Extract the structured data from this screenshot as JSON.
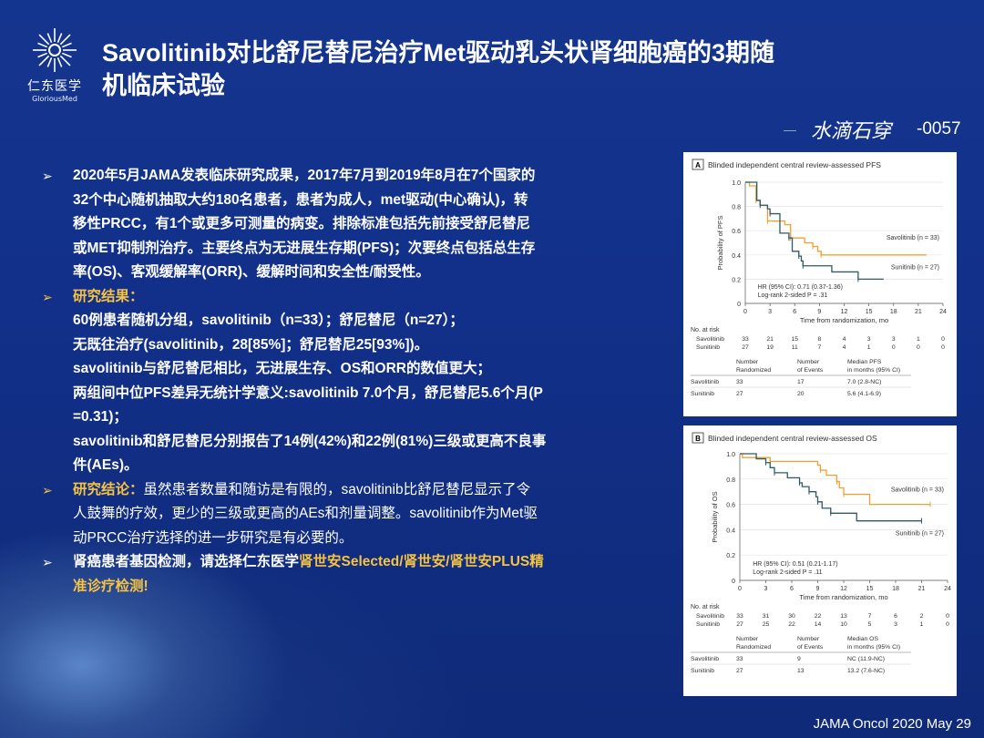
{
  "logo": {
    "cn": "仁东医学",
    "en": "GloriousMed"
  },
  "title": "Savolitinib对比舒尼替尼治疗Met驱动乳头状肾细胞癌的3期随机临床试验",
  "title_lines": [
    "Savolitinib对比舒尼替尼治疗Met驱动乳头状肾细胞癌的3期随",
    "机临床试验"
  ],
  "signature": "水滴石穿",
  "code": "-0057",
  "bullets": [
    {
      "lines": [
        "2020年5月JAMA发表临床研究成果，2017年7月到2019年8月在7个国家的",
        "32个中心随机抽取大约180名患者，患者为成人，met驱动(中心确认)，转",
        "移性PRCC，有1个或更多可测量的病变。排除标准包括先前接受舒尼替尼",
        "或MET抑制剂治疗。主要终点为无进展生存期(PFS)；次要终点包括总生存",
        "率(OS)、客观缓解率(ORR)、缓解时间和安全性/耐受性。"
      ]
    },
    {
      "heading": "研究结果：",
      "lines": [
        "60例患者随机分组，savolitinib（n=33）；舒尼替尼（n=27）；",
        "无既往治疗(savolitinib，28[85%]；舒尼替尼25[93%])。",
        "savolitinib与舒尼替尼相比，无进展生存、OS和ORR的数值更大；",
        "两组间中位PFS差异无统计学意义:savolitinib  7.0个月，舒尼替尼5.6个月(P",
        "=0.31)；",
        "savolitinib和舒尼替尼分别报告了14例(42%)和22例(81%)三级或更高不良事",
        "件(AEs)。"
      ]
    },
    {
      "heading": "研究结论：",
      "lines": [
        "虽然患者数量和随访是有限的，savolitinib比舒尼替尼显示了令",
        "人鼓舞的疗效，更少的三级或更高的AEs和剂量调整。savolitinib作为Met驱",
        "动PRCC治疗选择的进一步研究是有必要的。"
      ]
    },
    {
      "lines_mixed": [
        [
          "肾癌患者基因检测，请选择仁东医学",
          "肾世安Selected/肾世安/肾世安PLUS精"
        ],
        [
          "",
          "准诊疗检测!"
        ]
      ]
    }
  ],
  "footer": "JAMA Oncol 2020 May 29",
  "colors": {
    "savolitinib": "#f0a030",
    "sunitinib": "#2f5b63",
    "highlight": "#f5c242",
    "background": "#12308a"
  },
  "chart_data": [
    {
      "type": "line",
      "panel": "A",
      "title": "Blinded independent central review-assessed PFS",
      "xlabel": "Time from randomization, mo",
      "ylabel": "Probability of PFS",
      "xlim": [
        0,
        24
      ],
      "ylim": [
        0,
        1
      ],
      "xticks": [
        0,
        3,
        6,
        9,
        12,
        15,
        18,
        21,
        24
      ],
      "yticks": [
        "0",
        "0.2",
        "0.4",
        "0.6",
        "0.8",
        "1.0"
      ],
      "series": [
        {
          "name": "Savolitinib (n = 33)",
          "x": [
            0,
            0.5,
            1.3,
            1.8,
            2.7,
            4.8,
            5.5,
            7.2,
            8.2,
            8.8,
            9.2,
            22
          ],
          "y": [
            1,
            0.97,
            0.85,
            0.81,
            0.68,
            0.65,
            0.54,
            0.5,
            0.47,
            0.43,
            0.4,
            0.4
          ]
        },
        {
          "name": "Sunitinib (n = 27)",
          "x": [
            0,
            1.4,
            1.8,
            2.7,
            3,
            4.2,
            5.3,
            5.7,
            6.5,
            6.8,
            7,
            10.5,
            13.7,
            16.8
          ],
          "y": [
            1,
            0.85,
            0.81,
            0.78,
            0.74,
            0.58,
            0.54,
            0.43,
            0.39,
            0.35,
            0.31,
            0.26,
            0.2,
            0.2
          ]
        }
      ],
      "annotations": [
        "HR (95% CI): 0.71 (0.37-1.36)",
        "Log-rank 2-sided P = .31"
      ],
      "at_risk": {
        "label": "No. at risk",
        "rows": [
          {
            "name": "Savolitinib",
            "values": [
              33,
              21,
              15,
              8,
              4,
              3,
              3,
              1,
              0
            ]
          },
          {
            "name": "Sunitinib",
            "values": [
              27,
              19,
              11,
              7,
              4,
              1,
              0,
              0,
              0
            ]
          }
        ]
      },
      "table": {
        "headers": [
          "",
          "Number\nRandomized",
          "Number\nof Events",
          "Median PFS\nin months (95% CI)"
        ],
        "rows": [
          [
            "Savolitinib",
            "33",
            "17",
            "7.0 (2.8-NC)"
          ],
          [
            "Sunitinib",
            "27",
            "20",
            "5.6 (4.1-6.9)"
          ]
        ]
      }
    },
    {
      "type": "line",
      "panel": "B",
      "title": "Blinded independent central review-assessed OS",
      "xlabel": "Time from randomization, mo",
      "ylabel": "Probability of OS",
      "xlim": [
        0,
        24
      ],
      "ylim": [
        0,
        1
      ],
      "xticks": [
        0,
        3,
        6,
        9,
        12,
        15,
        18,
        21,
        24
      ],
      "yticks": [
        "0",
        "0.2",
        "0.4",
        "0.6",
        "0.8",
        "1.0"
      ],
      "series": [
        {
          "name": "Savolitinib (n = 33)",
          "x": [
            0,
            0.3,
            3.5,
            9,
            9.3,
            10,
            11.2,
            11.5,
            12,
            15,
            22
          ],
          "y": [
            1,
            0.97,
            0.94,
            0.91,
            0.87,
            0.83,
            0.78,
            0.73,
            0.68,
            0.6,
            0.6
          ]
        },
        {
          "name": "Sunitinib (n = 27)",
          "x": [
            0,
            1.9,
            3,
            3.5,
            4,
            5.5,
            6.9,
            7.2,
            8,
            8.8,
            9,
            9.5,
            10.5,
            13.5,
            21
          ],
          "y": [
            1,
            0.96,
            0.93,
            0.89,
            0.85,
            0.81,
            0.77,
            0.74,
            0.7,
            0.66,
            0.62,
            0.57,
            0.53,
            0.47,
            0.47
          ]
        }
      ],
      "annotations": [
        "HR (95% CI): 0.51 (0.21-1.17)",
        "Log-rank 2-sided P = .11"
      ],
      "at_risk": {
        "label": "No. at risk",
        "rows": [
          {
            "name": "Savolitinib",
            "values": [
              33,
              31,
              30,
              22,
              13,
              7,
              6,
              2,
              0
            ]
          },
          {
            "name": "Sunitinib",
            "values": [
              27,
              25,
              22,
              14,
              10,
              5,
              3,
              1,
              0
            ]
          }
        ]
      },
      "table": {
        "headers": [
          "",
          "Number\nRandomized",
          "Number\nof Events",
          "Median OS\nin months (95% CI)"
        ],
        "rows": [
          [
            "Savolitinib",
            "33",
            "9",
            "NC (11.9-NC)"
          ],
          [
            "Sunitinib",
            "27",
            "13",
            "13.2 (7.6-NC)"
          ]
        ]
      }
    }
  ]
}
